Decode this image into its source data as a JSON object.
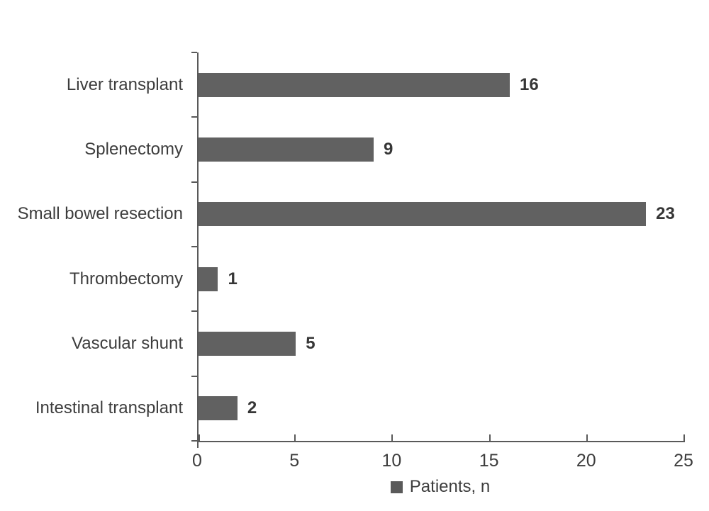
{
  "chart_data": {
    "type": "bar",
    "orientation": "horizontal",
    "title": "",
    "categories": [
      "Liver transplant",
      "Splenectomy",
      "Small bowel resection",
      "Thrombectomy",
      "Vascular shunt",
      "Intestinal transplant"
    ],
    "values": [
      16,
      9,
      23,
      1,
      5,
      2
    ],
    "data_labels": [
      "16",
      "9",
      "23",
      "1",
      "5",
      "2"
    ],
    "xlabel": "",
    "ylabel": "",
    "xlim": [
      0,
      25
    ],
    "x_ticks": [
      0,
      5,
      10,
      15,
      20,
      25
    ],
    "grid": "off",
    "legend": {
      "label": "Patients, n",
      "position": "bottom-center",
      "marker": "square"
    },
    "colors": {
      "bar": "#616161",
      "axis": "#595959",
      "category_label": "#3d3d3d",
      "tick_label": "#3d3d3d",
      "value_label": "#363636",
      "legend_marker": "#5a5a5a",
      "background": "#ffffff"
    }
  }
}
